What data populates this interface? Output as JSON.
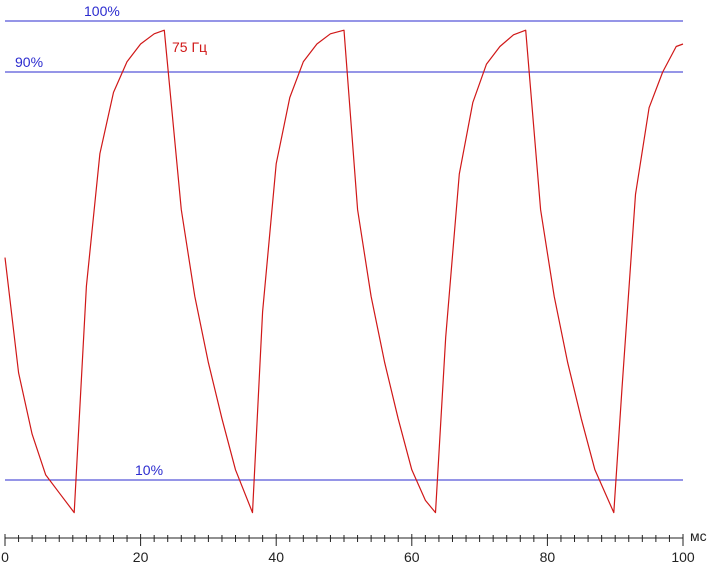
{
  "chart_data": {
    "type": "line",
    "xlabel": "мс",
    "ylabel": "",
    "xlim": [
      0,
      100
    ],
    "ylim": [
      0,
      100
    ],
    "grid": false,
    "x_ticks": [
      0,
      20,
      40,
      60,
      80,
      100
    ],
    "x_tick_labels": [
      "0",
      "20",
      "40",
      "60",
      "80",
      "100"
    ],
    "reference_lines": [
      {
        "label": "100%",
        "value": 100,
        "color": "#2b2bcf"
      },
      {
        "label": "90%",
        "value": 90,
        "color": "#2b2bcf"
      },
      {
        "label": "10%",
        "value": 10,
        "color": "#2b2bcf"
      }
    ],
    "series": [
      {
        "name": "75 Гц",
        "color": "#d01818",
        "x": [
          0,
          2,
          4,
          6,
          8,
          10.2,
          12,
          14,
          16,
          18,
          20,
          22,
          23.5,
          26,
          28,
          30,
          32,
          34,
          36.5,
          38,
          40,
          42,
          44,
          46,
          48,
          50,
          52,
          54,
          56,
          58,
          60,
          62,
          63.5,
          65,
          67,
          69,
          71,
          73,
          75,
          76.8,
          79,
          81,
          83,
          85,
          87,
          89.8,
          91,
          93,
          95,
          97,
          99,
          100
        ],
        "y": [
          53.6,
          31,
          19,
          11,
          7.5,
          3.6,
          48,
          74,
          86,
          92,
          95.5,
          97.5,
          98.2,
          63,
          46,
          33,
          22,
          12,
          3.6,
          43,
          72,
          85,
          92,
          95.5,
          97.5,
          98.2,
          63,
          46,
          33,
          22,
          12,
          6,
          3.6,
          38,
          70,
          84,
          91.5,
          95,
          97.3,
          98.2,
          63,
          46,
          33,
          22,
          12,
          3.6,
          28,
          66,
          83,
          90,
          95,
          95.5
        ]
      }
    ]
  }
}
